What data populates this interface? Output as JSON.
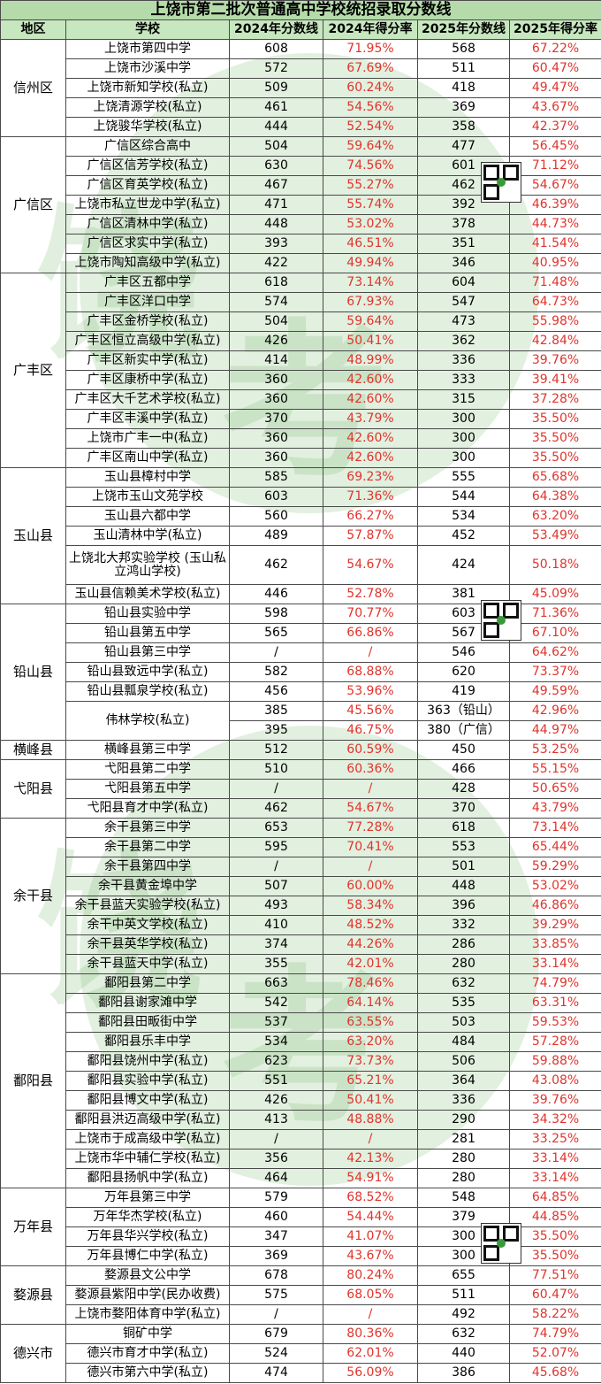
{
  "title": "上饶市第二批次普通高中学校统招录取分数线",
  "headers": [
    "地区",
    "学校",
    "2024年分数线",
    "2024年得分率",
    "2025年分数线",
    "2025年得分率"
  ],
  "regions": [
    {
      "name": "信州区",
      "rows": [
        [
          "上饶市第四中学",
          "608",
          "71.95%",
          "568",
          "67.22%"
        ],
        [
          "上饶市沙溪中学",
          "572",
          "67.69%",
          "511",
          "60.47%"
        ],
        [
          "上饶市新知学校(私立)",
          "509",
          "60.24%",
          "418",
          "49.47%"
        ],
        [
          "上饶清源学校(私立)",
          "461",
          "54.56%",
          "369",
          "43.67%"
        ],
        [
          "上饶骏华学校(私立)",
          "444",
          "52.54%",
          "358",
          "42.37%"
        ]
      ]
    },
    {
      "name": "广信区",
      "rows": [
        [
          "广信区综合高中",
          "504",
          "59.64%",
          "477",
          "56.45%"
        ],
        [
          "广信区信芳学校(私立)",
          "630",
          "74.56%",
          "601",
          "71.12%"
        ],
        [
          "广信区育英学校(私立)",
          "467",
          "55.27%",
          "462",
          "54.67%"
        ],
        [
          "上饶市私立世龙中学(私立)",
          "471",
          "55.74%",
          "392",
          "46.39%"
        ],
        [
          "广信区清林中学(私立)",
          "448",
          "53.02%",
          "378",
          "44.73%"
        ],
        [
          "广信区求实中学(私立)",
          "393",
          "46.51%",
          "351",
          "41.54%"
        ],
        [
          "上饶市陶知高级中学(私立)",
          "422",
          "49.94%",
          "346",
          "40.95%"
        ]
      ]
    },
    {
      "name": "广丰区",
      "rows": [
        [
          "广丰区五都中学",
          "618",
          "73.14%",
          "604",
          "71.48%"
        ],
        [
          "广丰区洋口中学",
          "574",
          "67.93%",
          "547",
          "64.73%"
        ],
        [
          "广丰区金桥学校(私立)",
          "504",
          "59.64%",
          "473",
          "55.98%"
        ],
        [
          "广丰区恒立高级中学(私立)",
          "426",
          "50.41%",
          "362",
          "42.84%"
        ],
        [
          "广丰区新实中学(私立)",
          "414",
          "48.99%",
          "336",
          "39.76%"
        ],
        [
          "广丰区康桥中学(私立)",
          "360",
          "42.60%",
          "333",
          "39.41%"
        ],
        [
          "广丰区大千艺术学校(私立)",
          "360",
          "42.60%",
          "315",
          "37.28%"
        ],
        [
          "广丰区丰溪中学(私立)",
          "370",
          "43.79%",
          "300",
          "35.50%"
        ],
        [
          "上饶市广丰一中(私立)",
          "360",
          "42.60%",
          "300",
          "35.50%"
        ],
        [
          "广丰区南山中学(私立)",
          "360",
          "42.60%",
          "300",
          "35.50%"
        ]
      ]
    },
    {
      "name": "玉山县",
      "rows": [
        [
          "玉山县樟村中学",
          "585",
          "69.23%",
          "555",
          "65.68%"
        ],
        [
          "上饶市玉山文苑学校",
          "603",
          "71.36%",
          "544",
          "64.38%"
        ],
        [
          "玉山县六都中学",
          "560",
          "66.27%",
          "534",
          "63.20%"
        ],
        [
          "玉山清林中学(私立)",
          "489",
          "57.87%",
          "452",
          "53.49%"
        ],
        [
          "上饶北大邦实验学校 (玉山私立鸿山学校)",
          "462",
          "54.67%",
          "424",
          "50.18%"
        ],
        [
          "玉山县信赖美术学校(私立)",
          "446",
          "52.78%",
          "381",
          "45.09%"
        ]
      ]
    },
    {
      "name": "铅山县",
      "rows": [
        [
          "铅山县实验中学",
          "598",
          "70.77%",
          "603",
          "71.36%"
        ],
        [
          "铅山县第五中学",
          "565",
          "66.86%",
          "567",
          "67.10%"
        ],
        [
          "铅山县第三中学",
          "/",
          "/",
          "546",
          "64.62%"
        ],
        [
          "铅山县致远中学(私立)",
          "582",
          "68.88%",
          "620",
          "73.37%"
        ],
        [
          "铅山县瓢泉学校(私立)",
          "456",
          "53.96%",
          "419",
          "49.59%"
        ],
        [
          "伟林学校(私立)",
          "385",
          "45.56%",
          "363（铅山）",
          "42.96%"
        ],
        [
          "",
          "395",
          "46.75%",
          "380（广信）",
          "44.97%"
        ]
      ]
    },
    {
      "name": "横峰县",
      "rows": [
        [
          "横峰县第三中学",
          "512",
          "60.59%",
          "450",
          "53.25%"
        ]
      ]
    },
    {
      "name": "弋阳县",
      "rows": [
        [
          "弋阳县第二中学",
          "510",
          "60.36%",
          "466",
          "55.15%"
        ],
        [
          "弋阳县第五中学",
          "/",
          "/",
          "428",
          "50.65%"
        ],
        [
          "弋阳县育才中学(私立)",
          "462",
          "54.67%",
          "370",
          "43.79%"
        ]
      ]
    },
    {
      "name": "余干县",
      "rows": [
        [
          "余干县第三中学",
          "653",
          "77.28%",
          "618",
          "73.14%"
        ],
        [
          "余干县第二中学",
          "595",
          "70.41%",
          "553",
          "65.44%"
        ],
        [
          "余干县第四中学",
          "/",
          "/",
          "501",
          "59.29%"
        ],
        [
          "余干县黄金埠中学",
          "507",
          "60.00%",
          "448",
          "53.02%"
        ],
        [
          "余干县蓝天实验学校(私立)",
          "493",
          "58.34%",
          "396",
          "46.86%"
        ],
        [
          "余干中英文学校(私立)",
          "410",
          "48.52%",
          "332",
          "39.29%"
        ],
        [
          "余干县英华学校(私立)",
          "374",
          "44.26%",
          "286",
          "33.85%"
        ],
        [
          "余干县蓝天中学(私立)",
          "355",
          "42.01%",
          "280",
          "33.14%"
        ]
      ]
    },
    {
      "name": "鄱阳县",
      "rows": [
        [
          "鄱阳县第二中学",
          "663",
          "78.46%",
          "632",
          "74.79%"
        ],
        [
          "鄱阳县谢家滩中学",
          "542",
          "64.14%",
          "535",
          "63.31%"
        ],
        [
          "鄱阳县田畈街中学",
          "537",
          "63.55%",
          "503",
          "59.53%"
        ],
        [
          "鄱阳县乐丰中学",
          "534",
          "63.20%",
          "484",
          "57.28%"
        ],
        [
          "鄱阳县饶州中学(私立)",
          "623",
          "73.73%",
          "506",
          "59.88%"
        ],
        [
          "鄱阳县实验中学(私立)",
          "551",
          "65.21%",
          "364",
          "43.08%"
        ],
        [
          "鄱阳县博文中学(私立)",
          "426",
          "50.41%",
          "336",
          "39.76%"
        ],
        [
          "鄱阳县洪迈高级中学(私立)",
          "413",
          "48.88%",
          "290",
          "34.32%"
        ],
        [
          "上饶市于成高级中学(私立)",
          "/",
          "/",
          "281",
          "33.25%"
        ],
        [
          "上饶市华中辅仁学校(私立)",
          "356",
          "42.13%",
          "280",
          "33.14%"
        ],
        [
          "鄱阳县扬帆中学(私立)",
          "464",
          "54.91%",
          "280",
          "33.14%"
        ]
      ]
    },
    {
      "name": "万年县",
      "rows": [
        [
          "万年县第三中学",
          "579",
          "68.52%",
          "548",
          "64.85%"
        ],
        [
          "万年华杰学校(私立)",
          "460",
          "54.44%",
          "379",
          "44.85%"
        ],
        [
          "万年县华兴学校(私立)",
          "347",
          "41.07%",
          "300",
          "35.50%"
        ],
        [
          "万年县博仁中学(私立)",
          "369",
          "43.67%",
          "300",
          "35.50%"
        ]
      ]
    },
    {
      "name": "婺源县",
      "rows": [
        [
          "婺源县文公中学",
          "678",
          "80.24%",
          "655",
          "77.51%"
        ],
        [
          "婺源县紫阳中学(民办收费)",
          "575",
          "68.05%",
          "511",
          "60.47%"
        ],
        [
          "上饶市婺阳体育中学(私立)",
          "/",
          "/",
          "492",
          "58.22%"
        ]
      ]
    },
    {
      "name": "德兴市",
      "rows": [
        [
          "铜矿中学",
          "679",
          "80.36%",
          "632",
          "74.79%"
        ],
        [
          "德兴市育才中学(私立)",
          "524",
          "62.01%",
          "440",
          "52.07%"
        ],
        [
          "德兴市第六中学(私立)",
          "474",
          "56.09%",
          "386",
          "45.68%"
        ]
      ]
    }
  ],
  "watermark": {
    "text1": "饶",
    "text2": "考",
    "color": "#78b46e"
  },
  "qr_icon": "qr-code-icon"
}
